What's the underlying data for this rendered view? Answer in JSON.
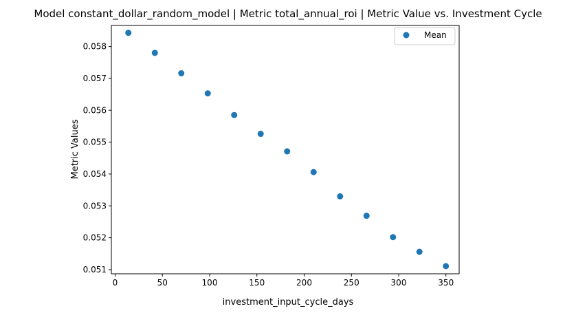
{
  "chart_data": {
    "type": "scatter",
    "title": "Model constant_dollar_random_model | Metric total_annual_roi | Metric Value vs. Investment Cycle",
    "xlabel": "investment_input_cycle_days",
    "ylabel": "Metric Values",
    "xlim": [
      -4,
      364
    ],
    "ylim": [
      0.05087,
      0.05866
    ],
    "xticks": [
      0,
      50,
      100,
      150,
      200,
      250,
      300,
      350
    ],
    "xtick_labels": [
      "0",
      "50",
      "100",
      "150",
      "200",
      "250",
      "300",
      "350"
    ],
    "yticks": [
      0.051,
      0.052,
      0.053,
      0.054,
      0.055,
      0.056,
      0.057,
      0.058
    ],
    "ytick_labels": [
      "0.051",
      "0.052",
      "0.053",
      "0.054",
      "0.055",
      "0.056",
      "0.057",
      "0.058"
    ],
    "grid": false,
    "legend_position": "upper right",
    "color": "#1f77b4",
    "series": [
      {
        "name": "Mean",
        "x": [
          14,
          42,
          70,
          98,
          126,
          154,
          182,
          210,
          238,
          266,
          294,
          322,
          350
        ],
        "y": [
          0.05843,
          0.0578,
          0.05716,
          0.05653,
          0.05585,
          0.05526,
          0.05471,
          0.05406,
          0.0533,
          0.05269,
          0.05202,
          0.05156,
          0.05111
        ]
      }
    ]
  }
}
